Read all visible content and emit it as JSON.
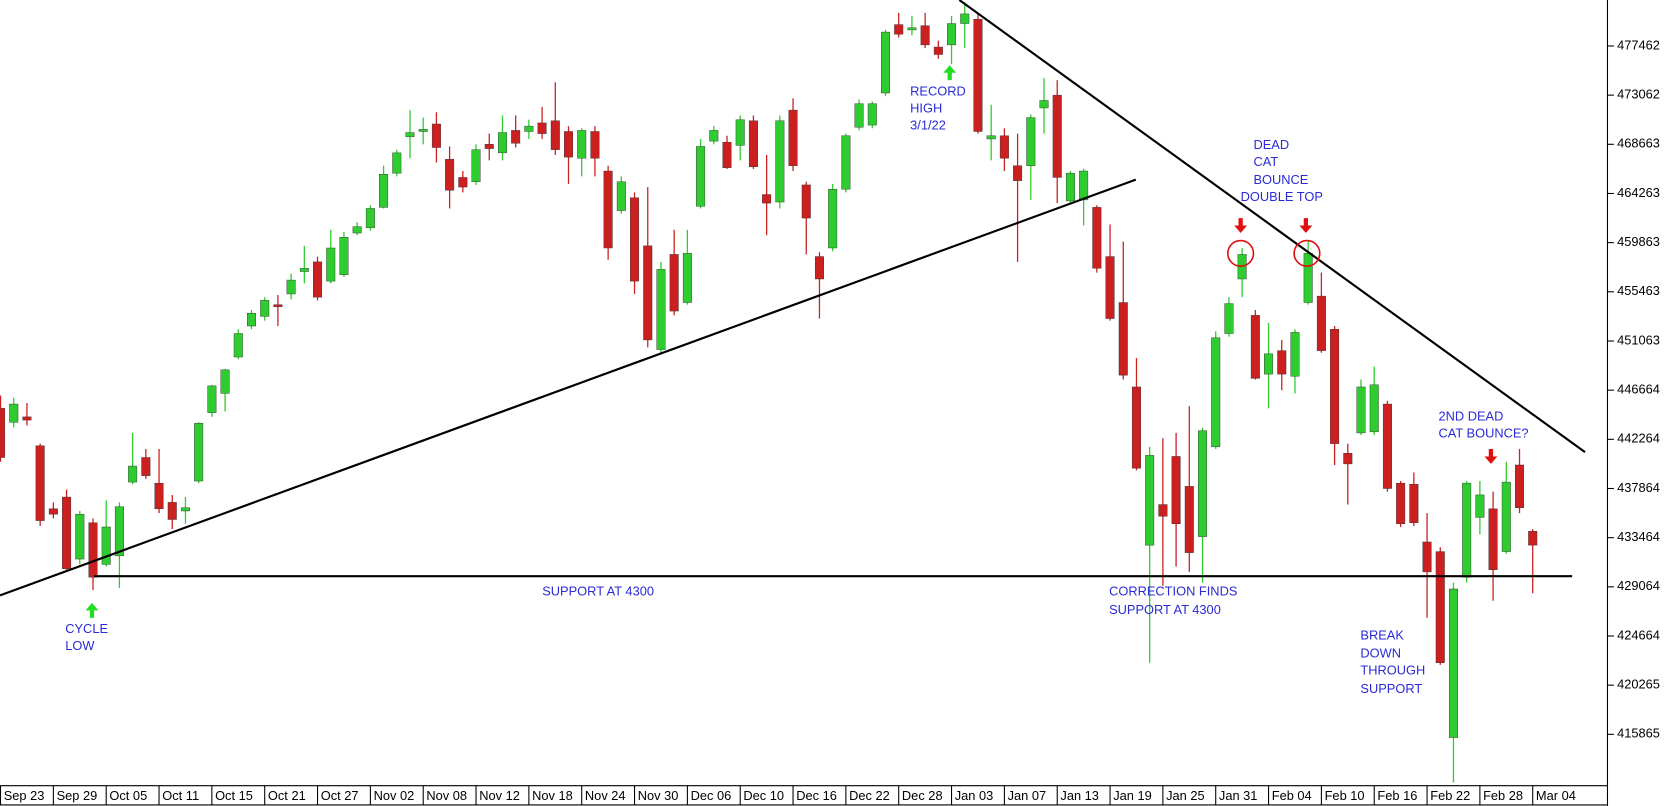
{
  "chart_data": {
    "type": "candlestick",
    "categories": [
      "Sep 23",
      null,
      null,
      null,
      "Sep 29",
      null,
      null,
      null,
      "Oct 05",
      null,
      null,
      null,
      "Oct 11",
      null,
      null,
      null,
      "Oct 15",
      null,
      null,
      null,
      "Oct 21",
      null,
      null,
      null,
      "Oct 27",
      null,
      null,
      null,
      "Nov 02",
      null,
      null,
      null,
      "Nov 08",
      null,
      null,
      null,
      "Nov 12",
      null,
      null,
      null,
      "Nov 18",
      null,
      null,
      null,
      "Nov 24",
      null,
      null,
      null,
      "Nov 30",
      null,
      null,
      null,
      "Dec 06",
      null,
      null,
      null,
      "Dec 10",
      null,
      null,
      null,
      "Dec 16",
      null,
      null,
      null,
      "Dec 22",
      null,
      null,
      null,
      "Dec 28",
      null,
      null,
      null,
      "Jan 03",
      null,
      null,
      null,
      "Jan 07",
      null,
      null,
      null,
      "Jan 13",
      null,
      null,
      null,
      "Jan 19",
      null,
      null,
      null,
      "Jan 25",
      null,
      null,
      null,
      "Jan 31",
      null,
      null,
      null,
      "Feb 04",
      null,
      null,
      null,
      "Feb 10",
      null,
      null,
      null,
      "Feb 16",
      null,
      null,
      null,
      "Feb 22",
      null,
      null,
      null,
      "Feb 28",
      null,
      null,
      null,
      "Mar 04"
    ],
    "open": [
      445037,
      443793,
      444272,
      441689,
      436046,
      437098,
      431550,
      434802,
      431072,
      431837,
      438437,
      440637,
      438341,
      436620,
      435854,
      438533,
      444654,
      446376,
      449628,
      452402,
      453263,
      454315,
      455271,
      457280,
      458141,
      456419,
      456993,
      460723,
      461202,
      463019,
      466080,
      469332,
      469810,
      470480,
      467323,
      465697,
      465315,
      468662,
      467897,
      469906,
      469810,
      470575,
      470767,
      469810,
      467419,
      469810,
      466271,
      462732,
      463880,
      459576,
      450297,
      458810,
      454506,
      463115,
      468949,
      468854,
      468567,
      470767,
      464167,
      463497,
      471723,
      465028,
      458619,
      459384,
      464645,
      470193,
      470384,
      473253,
      479375,
      478897,
      479279,
      477366,
      477558,
      479471,
      479853,
      469141,
      469427,
      466749,
      466749,
      471914,
      473062,
      463593,
      463688,
      463019,
      458619,
      454506,
      446950,
      432794,
      436428,
      440732,
      438054,
      433559,
      441593,
      451732,
      456610,
      453358,
      448098,
      450202,
      447906,
      454506,
      455080,
      452115,
      441019,
      442837,
      442932,
      445419,
      438341,
      438246,
      433080,
      432220,
      415577,
      429924,
      435280,
      436046,
      432220,
      439967,
      434037
    ],
    "high": [
      446185,
      445993,
      445515,
      441880,
      436620,
      437767,
      435854,
      435185,
      436811,
      436620,
      442837,
      441402,
      441402,
      437289,
      437098,
      443793,
      447141,
      448576,
      452115,
      453837,
      454984,
      455176,
      457089,
      459576,
      458619,
      461010,
      460819,
      461680,
      463210,
      466749,
      468184,
      471723,
      471054,
      471532,
      468471,
      466271,
      468662,
      469619,
      471245,
      471245,
      470862,
      472010,
      474210,
      470288,
      470097,
      470288,
      466749,
      465793,
      464358,
      464836,
      458141,
      461010,
      461010,
      469141,
      470288,
      469427,
      471245,
      471245,
      467706,
      471245,
      472775,
      465315,
      459002,
      465123,
      469619,
      472680,
      472488,
      478897,
      480427,
      480140,
      480427,
      477940,
      480140,
      481384,
      480427,
      472201,
      470097,
      469619,
      471340,
      474593,
      474401,
      466271,
      466462,
      463210,
      461489,
      459958,
      449532,
      441593,
      442359,
      442837,
      445228,
      443315,
      451924,
      454984,
      459384,
      453837,
      452689,
      451158,
      452115,
      460054,
      457184,
      452402,
      441880,
      447619,
      448767,
      445706,
      438533,
      439298,
      435663,
      432602,
      429446,
      438533,
      438533,
      437576,
      440254,
      441402,
      434228
    ],
    "low": [
      440254,
      443315,
      443506,
      434515,
      435185,
      430402,
      431072,
      428776,
      430880,
      428967,
      438246,
      438724,
      435663,
      434228,
      434707,
      438341,
      444272,
      444750,
      449437,
      452115,
      452880,
      452402,
      454793,
      456228,
      454697,
      456228,
      456802,
      460532,
      460915,
      462923,
      465793,
      467419,
      468662,
      467036,
      462923,
      464358,
      465028,
      467228,
      467228,
      468375,
      469141,
      469141,
      467706,
      465123,
      465793,
      465793,
      458332,
      462445,
      455271,
      450489,
      450011,
      453358,
      454315,
      462923,
      468662,
      466462,
      467228,
      466462,
      460532,
      462923,
      466271,
      458810,
      453071,
      459097,
      464358,
      469906,
      470097,
      472967,
      478227,
      478419,
      477271,
      476314,
      475836,
      477271,
      469619,
      467228,
      466271,
      458141,
      463688,
      469619,
      463402,
      463402,
      461393,
      457184,
      452880,
      447619,
      439489,
      422272,
      429159,
      430880,
      430402,
      429446,
      441402,
      451445,
      454984,
      447619,
      445037,
      446663,
      446376,
      454315,
      450011,
      439967,
      436428,
      442645,
      442645,
      437576,
      434420,
      434515,
      426289,
      422081,
      411559,
      429446,
      433750,
      427820,
      432028,
      435663,
      428489
    ],
    "close": [
      440637,
      445419,
      443985,
      434993,
      435567,
      430689,
      435567,
      429924,
      434420,
      436237,
      439872,
      439011,
      436046,
      435089,
      436141,
      443698,
      447045,
      448480,
      451732,
      453550,
      454697,
      454123,
      456515,
      457567,
      454984,
      459384,
      460341,
      461297,
      462923,
      465984,
      467897,
      469714,
      470001,
      468375,
      464549,
      464836,
      468184,
      468280,
      469714,
      468758,
      470288,
      469619,
      468184,
      467514,
      469906,
      467419,
      459384,
      465315,
      456419,
      451158,
      457471,
      453741,
      458906,
      468471,
      469906,
      466558,
      470862,
      466654,
      463402,
      470767,
      466749,
      462062,
      456610,
      464645,
      469427,
      472297,
      472297,
      478706,
      478514,
      479088,
      477558,
      476697,
      479471,
      480332,
      469810,
      469427,
      467419,
      465410,
      471054,
      472584,
      465697,
      466080,
      466271,
      457567,
      453071,
      448002,
      439680,
      440828,
      435376,
      434707,
      432124,
      443028,
      451350,
      454410,
      458810,
      447715,
      449915,
      448098,
      451828,
      458906,
      450202,
      441880,
      440063,
      446950,
      447141,
      437863,
      434707,
      434802,
      430402,
      422272,
      428872,
      438341,
      437289,
      430594,
      438437,
      436141,
      432794
    ],
    "up_color": "#2ecc2e",
    "down_color": "#cc1f1f",
    "ylim": [
      411500,
      481575
    ],
    "yticks": [
      477462,
      473062,
      468663,
      464263,
      459863,
      455463,
      451063,
      446664,
      442264,
      437864,
      433464,
      429064,
      424664,
      420265,
      415865
    ],
    "annotations": [
      [
        "RECORD",
        "HIGH",
        "3/1/22"
      ],
      [
        "DEAD",
        "CAT",
        "BOUNCE",
        "DOUBLE TOP"
      ],
      [
        "SUPPORT AT 4300"
      ],
      [
        "CORRECTION FINDS",
        "SUPPORT AT 4300"
      ],
      [
        "CYCLE",
        "LOW"
      ],
      [
        "BREAK",
        "DOWN",
        "THROUGH",
        "SUPPORT"
      ],
      [
        "2ND DEAD",
        "CAT BOUNCE?"
      ]
    ]
  }
}
